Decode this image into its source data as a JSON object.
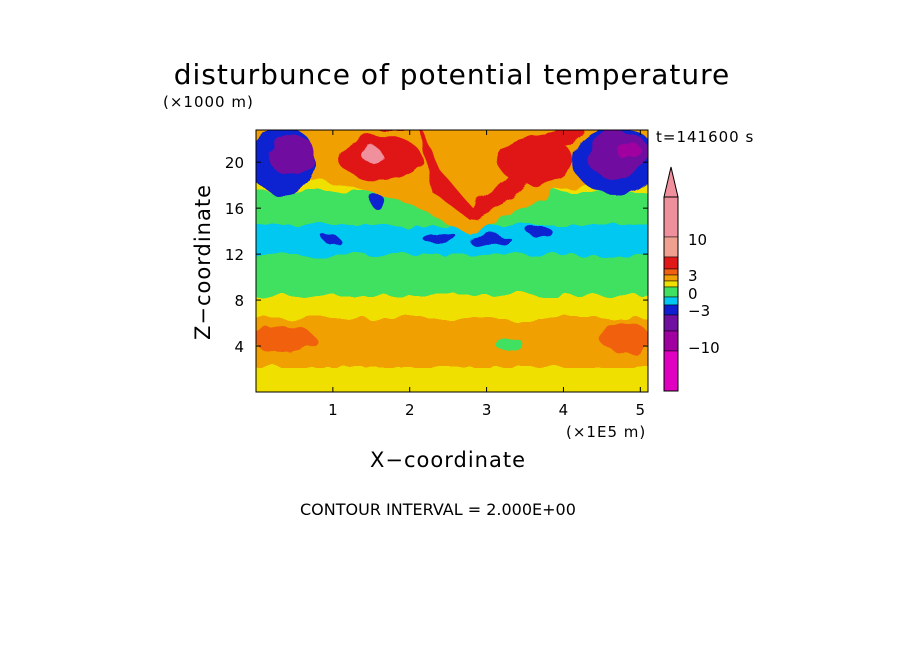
{
  "chart_data": {
    "type": "heatmap",
    "title": "disturbunce of potential temperature",
    "xlabel": "X−coordinate",
    "ylabel": "Z−coordinate",
    "x_unit": "(×1E5 m)",
    "y_unit": "(×1000 m)",
    "timestamp": "t=141600 s",
    "footnote": "CONTOUR INTERVAL = 2.000E+00",
    "xlim": [
      0,
      5.1
    ],
    "ylim": [
      0,
      22.8
    ],
    "x_ticks": [
      "1",
      "2",
      "3",
      "4",
      "5"
    ],
    "y_ticks": [
      "4",
      "8",
      "12",
      "16",
      "20"
    ],
    "contour_interval": 2,
    "colorbar": {
      "labels": [
        "10",
        "3",
        "0",
        "−3",
        "−10"
      ],
      "colors": [
        "#f0909c",
        "#f0a090",
        "#e01818",
        "#f06010",
        "#f0a000",
        "#f0e000",
        "#40e060",
        "#00c8f0",
        "#1020d0",
        "#7010a0",
        "#a000a0",
        "#e000c0"
      ]
    },
    "approx_regions": [
      {
        "z_range": [
          0,
          2
        ],
        "value_range": [
          0,
          2
        ],
        "color": "#f0e000"
      },
      {
        "z_range": [
          2,
          7
        ],
        "value_range": [
          2,
          4
        ],
        "color": "#f0a000"
      },
      {
        "z_range": [
          7,
          11
        ],
        "value_range": [
          0,
          2
        ],
        "color": "#40e060"
      },
      {
        "z_range": [
          11,
          15
        ],
        "value_range": [
          -2,
          0
        ],
        "color": "#00c8f0"
      },
      {
        "z_range": [
          15,
          18
        ],
        "value_range": [
          0,
          2
        ],
        "color": "#40e060"
      },
      {
        "z_range": [
          18,
          22.8
        ],
        "value_range": [
          4,
          8
        ],
        "color": "#e01818"
      },
      {
        "z_range": [
          19,
          22.8
        ],
        "value_range": [
          -10,
          -6
        ],
        "color": "#a000a0"
      }
    ]
  }
}
